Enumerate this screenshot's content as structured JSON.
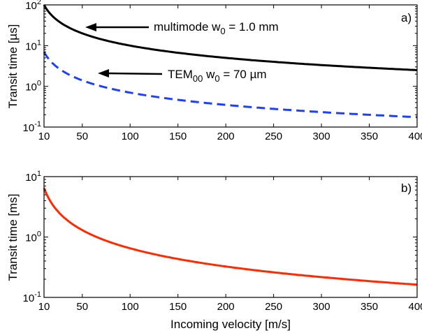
{
  "chart_data": [
    {
      "type": "line",
      "panel_label": "a)",
      "xlabel": "",
      "ylabel": "Transit time [µs]",
      "xlim": [
        10,
        400
      ],
      "ylim": [
        0.1,
        100
      ],
      "yscale": "log",
      "grid": false,
      "xticks": [
        10,
        50,
        100,
        150,
        200,
        250,
        300,
        350,
        400
      ],
      "yticks": [
        {
          "base": "10",
          "exp": "-1"
        },
        {
          "base": "10",
          "exp": "0"
        },
        {
          "base": "10",
          "exp": "1"
        },
        {
          "base": "10",
          "exp": "2"
        }
      ],
      "series": [
        {
          "name": "multimode w0 = 1.0 mm",
          "color": "#000000",
          "style": "solid",
          "x": [
            10,
            20,
            50,
            100,
            150,
            200,
            250,
            300,
            350,
            400
          ],
          "y": [
            100,
            50,
            20,
            10,
            6.67,
            5,
            4,
            3.33,
            2.86,
            2.5
          ]
        },
        {
          "name": "TEM00 w0 = 70 µm",
          "color": "#1f3fff",
          "style": "dashed",
          "x": [
            10,
            20,
            50,
            100,
            150,
            200,
            250,
            300,
            350,
            400
          ],
          "y": [
            7,
            3.5,
            1.4,
            0.7,
            0.467,
            0.35,
            0.28,
            0.233,
            0.2,
            0.175
          ]
        }
      ],
      "annotations": [
        {
          "pre": "multimode w",
          "sub": "0",
          "post": " = 1.0 mm"
        },
        {
          "pre": "TEM",
          "sub": "00",
          "post": " w",
          "sub2": "0",
          "post2": " = 70 µm"
        }
      ]
    },
    {
      "type": "line",
      "panel_label": "b)",
      "xlabel": "Incoming velocity [m/s]",
      "ylabel": "Transit time [ms]",
      "xlim": [
        10,
        400
      ],
      "ylim": [
        0.1,
        10
      ],
      "yscale": "log",
      "grid": false,
      "xticks": [
        10,
        50,
        100,
        150,
        200,
        250,
        300,
        350,
        400
      ],
      "yticks": [
        {
          "base": "10",
          "exp": "-1"
        },
        {
          "base": "10",
          "exp": "0"
        },
        {
          "base": "10",
          "exp": "1"
        }
      ],
      "series": [
        {
          "color": "#ff2a00",
          "style": "solid",
          "x": [
            10,
            20,
            50,
            100,
            150,
            200,
            250,
            300,
            350,
            400
          ],
          "y": [
            6.5,
            3.25,
            1.3,
            0.65,
            0.433,
            0.325,
            0.26,
            0.217,
            0.186,
            0.1625
          ]
        }
      ]
    }
  ]
}
